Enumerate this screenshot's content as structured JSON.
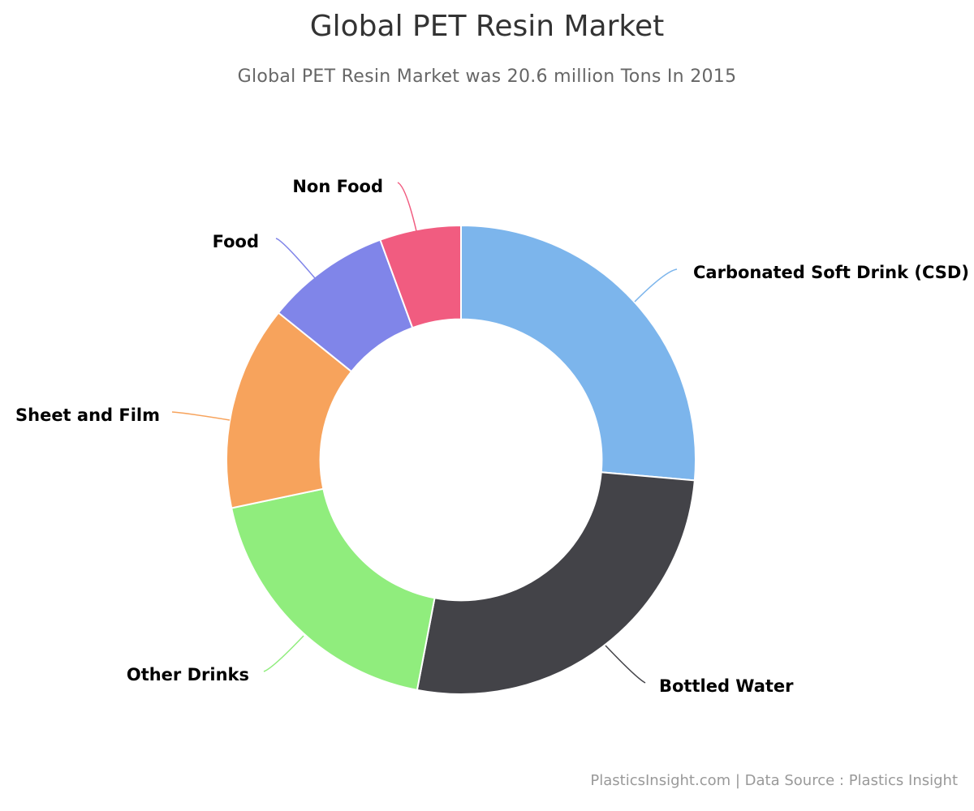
{
  "chart_data": {
    "type": "pie",
    "title": "Global PET Resin Market",
    "subtitle": "Global PET Resin Market was 20.6 million Tons In 2015",
    "credits": "PlasticsInsight.com | Data Source : Plastics Insight",
    "categories": [
      "Carbonated Soft Drink (CSD)",
      "Bottled Water",
      "Other Drinks",
      "Sheet and Film",
      "Food",
      "Non Food"
    ],
    "values": [
      26.4,
      26.6,
      18.7,
      14.1,
      8.6,
      5.6
    ],
    "colors": [
      "#7cb5ec",
      "#434348",
      "#90ed7d",
      "#f7a35c",
      "#8085e9",
      "#f15c80"
    ],
    "inner_radius_ratio": 0.6
  }
}
